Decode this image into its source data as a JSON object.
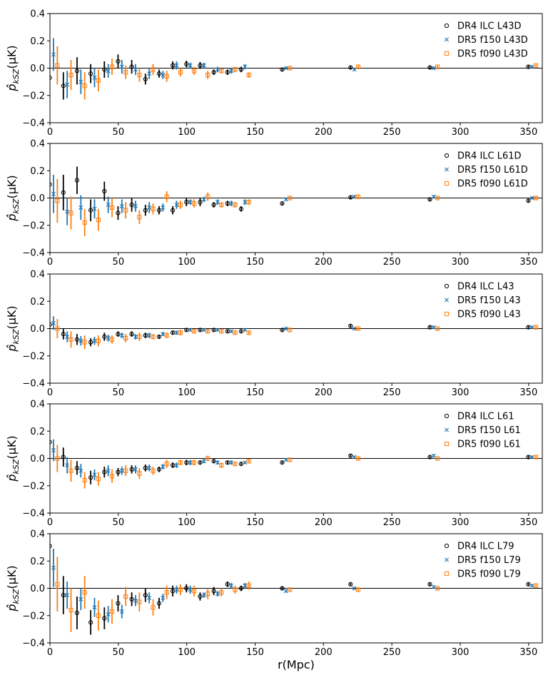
{
  "figure": {
    "ylabel": "p̂_kSZ(μK)",
    "xlabel": "r(Mpc)"
  },
  "colors": {
    "DR4 ILC": "#000000",
    "DR5 f150": "#1f77b4",
    "DR5 f090": "#ff7f0e",
    "zeroline": "#000000"
  },
  "chart_data": [
    {
      "type": "scatter",
      "title": "",
      "xlabel": "",
      "ylabel": "p̂_kSZ(μK)",
      "xlim": [
        0,
        360
      ],
      "ylim": [
        -0.4,
        0.4
      ],
      "xticks": [
        0,
        50,
        100,
        150,
        200,
        250,
        300,
        350
      ],
      "yticks": [
        -0.4,
        -0.2,
        0.0,
        0.2,
        0.4
      ],
      "legend_position": "top-right",
      "x": [
        1,
        11,
        21,
        31,
        41,
        51,
        61,
        71,
        81,
        91,
        101,
        111,
        121,
        131,
        141,
        171,
        221,
        279,
        351
      ],
      "series": [
        {
          "name": "DR4 ILC L43D",
          "marker": "circle",
          "values": [
            -0.07,
            -0.13,
            -0.02,
            -0.04,
            -0.01,
            0.05,
            0.01,
            -0.08,
            -0.04,
            0.02,
            0.03,
            0.02,
            -0.03,
            -0.03,
            -0.01,
            -0.01,
            0.005,
            0.005,
            0.01
          ],
          "errors": [
            0.14,
            0.1,
            0.1,
            0.07,
            0.06,
            0.05,
            0.05,
            0.04,
            0.03,
            0.03,
            0.025,
            0.025,
            0.02,
            0.02,
            0.02,
            0.01,
            0.01,
            0.01,
            0.01
          ]
        },
        {
          "name": "DR5 f150 L43D",
          "marker": "x",
          "values": [
            0.1,
            -0.12,
            -0.1,
            -0.07,
            -0.02,
            0.01,
            -0.01,
            -0.04,
            -0.05,
            0.02,
            0.02,
            0.02,
            -0.01,
            -0.02,
            0.01,
            0.0,
            -0.01,
            0.0,
            0.01
          ],
          "errors": [
            0.12,
            0.1,
            0.09,
            0.07,
            0.05,
            0.05,
            0.04,
            0.04,
            0.03,
            0.03,
            0.02,
            0.02,
            0.02,
            0.02,
            0.02,
            0.01,
            0.01,
            0.01,
            0.01
          ]
        },
        {
          "name": "DR5 f090 L43D",
          "marker": "square",
          "values": [
            0.02,
            -0.05,
            -0.13,
            -0.09,
            0.01,
            -0.03,
            -0.05,
            -0.01,
            -0.06,
            -0.03,
            -0.02,
            -0.05,
            -0.02,
            -0.01,
            -0.05,
            0.0,
            0.01,
            0.01,
            0.02
          ],
          "errors": [
            0.14,
            0.11,
            0.1,
            0.08,
            0.06,
            0.05,
            0.05,
            0.04,
            0.04,
            0.03,
            0.03,
            0.03,
            0.02,
            0.02,
            0.02,
            0.01,
            0.01,
            0.01,
            0.01
          ]
        }
      ]
    },
    {
      "type": "scatter",
      "title": "",
      "xlabel": "",
      "ylabel": "p̂_kSZ(μK)",
      "xlim": [
        0,
        360
      ],
      "ylim": [
        -0.4,
        0.4
      ],
      "xticks": [
        0,
        50,
        100,
        150,
        200,
        250,
        300,
        350
      ],
      "yticks": [
        -0.4,
        -0.2,
        0.0,
        0.2,
        0.4
      ],
      "legend_position": "top-right",
      "x": [
        1,
        11,
        21,
        31,
        41,
        51,
        61,
        71,
        81,
        91,
        101,
        111,
        121,
        131,
        141,
        171,
        221,
        279,
        351
      ],
      "series": [
        {
          "name": "DR4 ILC L61D",
          "marker": "circle",
          "values": [
            0.1,
            0.04,
            0.13,
            -0.09,
            0.05,
            -0.11,
            -0.05,
            -0.09,
            -0.09,
            -0.09,
            -0.03,
            -0.03,
            -0.05,
            -0.04,
            -0.08,
            -0.04,
            0.005,
            -0.01,
            -0.02
          ],
          "errors": [
            0.2,
            0.13,
            0.1,
            0.08,
            0.07,
            0.05,
            0.05,
            0.04,
            0.03,
            0.03,
            0.03,
            0.03,
            0.02,
            0.02,
            0.02,
            0.01,
            0.01,
            0.01,
            0.01
          ]
        },
        {
          "name": "DR5 f150 L61D",
          "marker": "x",
          "values": [
            0.03,
            -0.1,
            -0.07,
            -0.08,
            -0.05,
            -0.06,
            -0.06,
            -0.07,
            -0.07,
            -0.05,
            -0.03,
            -0.01,
            -0.03,
            -0.04,
            -0.03,
            -0.01,
            0.01,
            0.01,
            0.0
          ],
          "errors": [
            0.14,
            0.1,
            0.09,
            0.07,
            0.06,
            0.05,
            0.04,
            0.04,
            0.03,
            0.03,
            0.02,
            0.02,
            0.02,
            0.02,
            0.02,
            0.01,
            0.01,
            0.01,
            0.01
          ]
        },
        {
          "name": "DR5 f090 L61D",
          "marker": "square",
          "values": [
            -0.02,
            -0.11,
            -0.18,
            -0.16,
            -0.07,
            -0.09,
            -0.14,
            -0.08,
            0.01,
            -0.05,
            -0.04,
            0.01,
            -0.05,
            -0.05,
            -0.03,
            0.0,
            0.01,
            0.0,
            0.0
          ],
          "errors": [
            0.16,
            0.12,
            0.1,
            0.08,
            0.07,
            0.06,
            0.05,
            0.04,
            0.04,
            0.03,
            0.03,
            0.03,
            0.02,
            0.02,
            0.02,
            0.01,
            0.01,
            0.01,
            0.01
          ]
        }
      ]
    },
    {
      "type": "scatter",
      "title": "",
      "xlabel": "",
      "ylabel": "p̂_kSZ(μK)",
      "xlim": [
        0,
        360
      ],
      "ylim": [
        -0.4,
        0.4
      ],
      "xticks": [
        0,
        50,
        100,
        150,
        200,
        250,
        300,
        350
      ],
      "yticks": [
        -0.4,
        -0.2,
        0.0,
        0.2,
        0.4
      ],
      "legend_position": "top-right",
      "x": [
        1,
        11,
        21,
        31,
        41,
        51,
        61,
        71,
        81,
        91,
        101,
        111,
        121,
        131,
        141,
        171,
        221,
        279,
        351
      ],
      "series": [
        {
          "name": "DR4 ILC L43",
          "marker": "circle",
          "values": [
            0.03,
            -0.04,
            -0.08,
            -0.1,
            -0.06,
            -0.04,
            -0.04,
            -0.05,
            -0.06,
            -0.03,
            -0.01,
            -0.01,
            -0.01,
            -0.02,
            -0.02,
            -0.01,
            0.02,
            0.01,
            0.01
          ],
          "errors": [
            0.06,
            0.04,
            0.04,
            0.03,
            0.03,
            0.02,
            0.02,
            0.02,
            0.015,
            0.015,
            0.01,
            0.01,
            0.01,
            0.01,
            0.01,
            0.01,
            0.01,
            0.01,
            0.01
          ]
        },
        {
          "name": "DR5 f150 L43",
          "marker": "x",
          "values": [
            0.04,
            -0.06,
            -0.09,
            -0.09,
            -0.07,
            -0.05,
            -0.06,
            -0.05,
            -0.04,
            -0.03,
            -0.01,
            -0.01,
            -0.01,
            -0.02,
            -0.01,
            0.0,
            0.0,
            0.01,
            0.01
          ],
          "errors": [
            0.05,
            0.04,
            0.035,
            0.03,
            0.025,
            0.02,
            0.02,
            0.02,
            0.015,
            0.015,
            0.01,
            0.01,
            0.01,
            0.01,
            0.01,
            0.01,
            0.01,
            0.01,
            0.01
          ]
        },
        {
          "name": "DR5 f090 L43",
          "marker": "square",
          "values": [
            0.0,
            -0.08,
            -0.1,
            -0.09,
            -0.08,
            -0.07,
            -0.06,
            -0.06,
            -0.05,
            -0.03,
            -0.02,
            -0.02,
            -0.02,
            -0.03,
            -0.03,
            -0.01,
            0.0,
            0.0,
            0.01
          ],
          "errors": [
            0.07,
            0.06,
            0.05,
            0.04,
            0.03,
            0.03,
            0.03,
            0.02,
            0.02,
            0.02,
            0.015,
            0.015,
            0.015,
            0.015,
            0.015,
            0.01,
            0.01,
            0.01,
            0.01
          ]
        }
      ]
    },
    {
      "type": "scatter",
      "title": "",
      "xlabel": "",
      "ylabel": "p̂_kSZ(μK)",
      "xlim": [
        0,
        360
      ],
      "ylim": [
        -0.4,
        0.4
      ],
      "xticks": [
        0,
        50,
        100,
        150,
        200,
        250,
        300,
        350
      ],
      "yticks": [
        -0.4,
        -0.2,
        0.0,
        0.2,
        0.4
      ],
      "legend_position": "top-right",
      "x": [
        1,
        11,
        21,
        31,
        41,
        51,
        61,
        71,
        81,
        91,
        101,
        111,
        121,
        131,
        141,
        171,
        221,
        279,
        351
      ],
      "series": [
        {
          "name": "DR4 ILC L61",
          "marker": "circle",
          "values": [
            0.12,
            0.01,
            -0.07,
            -0.14,
            -0.1,
            -0.1,
            -0.08,
            -0.07,
            -0.08,
            -0.05,
            -0.03,
            -0.03,
            -0.02,
            -0.03,
            -0.04,
            -0.03,
            0.02,
            0.01,
            0.01
          ],
          "errors": [
            0.1,
            0.07,
            0.05,
            0.05,
            0.04,
            0.03,
            0.03,
            0.025,
            0.02,
            0.02,
            0.02,
            0.015,
            0.015,
            0.015,
            0.01,
            0.01,
            0.01,
            0.01,
            0.01
          ]
        },
        {
          "name": "DR5 f150 L61",
          "marker": "x",
          "values": [
            0.06,
            -0.05,
            -0.09,
            -0.12,
            -0.09,
            -0.09,
            -0.08,
            -0.07,
            -0.06,
            -0.05,
            -0.03,
            -0.02,
            -0.03,
            -0.03,
            -0.03,
            -0.01,
            0.01,
            0.02,
            0.01
          ],
          "errors": [
            0.08,
            0.06,
            0.05,
            0.04,
            0.04,
            0.03,
            0.03,
            0.025,
            0.02,
            0.02,
            0.02,
            0.015,
            0.015,
            0.015,
            0.01,
            0.01,
            0.01,
            0.01,
            0.01
          ]
        },
        {
          "name": "DR5 f090 L61",
          "marker": "square",
          "values": [
            0.0,
            -0.09,
            -0.16,
            -0.15,
            -0.13,
            -0.09,
            -0.11,
            -0.09,
            -0.04,
            -0.03,
            -0.03,
            0.0,
            -0.05,
            -0.04,
            -0.02,
            -0.01,
            0.0,
            0.0,
            0.01
          ],
          "errors": [
            0.1,
            0.08,
            0.06,
            0.05,
            0.05,
            0.04,
            0.04,
            0.03,
            0.03,
            0.02,
            0.02,
            0.02,
            0.02,
            0.015,
            0.015,
            0.01,
            0.01,
            0.01,
            0.01
          ]
        }
      ]
    },
    {
      "type": "scatter",
      "title": "",
      "xlabel": "r(Mpc)",
      "ylabel": "p̂_kSZ(μK)",
      "xlim": [
        0,
        360
      ],
      "ylim": [
        -0.4,
        0.4
      ],
      "xticks": [
        0,
        50,
        100,
        150,
        200,
        250,
        300,
        350
      ],
      "yticks": [
        -0.4,
        -0.2,
        0.0,
        0.2,
        0.4
      ],
      "legend_position": "top-right",
      "x": [
        1,
        11,
        21,
        31,
        41,
        51,
        61,
        71,
        81,
        91,
        101,
        111,
        121,
        131,
        141,
        171,
        221,
        279,
        351
      ],
      "series": [
        {
          "name": "DR4 ILC L79",
          "marker": "circle",
          "values": [
            0.31,
            -0.05,
            -0.18,
            -0.25,
            -0.22,
            -0.11,
            -0.08,
            -0.05,
            -0.11,
            -0.02,
            0.0,
            -0.06,
            -0.02,
            0.03,
            0.0,
            0.0,
            0.03,
            0.03,
            0.03
          ],
          "errors": [
            0.18,
            0.14,
            0.12,
            0.09,
            0.08,
            0.06,
            0.05,
            0.05,
            0.04,
            0.04,
            0.03,
            0.03,
            0.03,
            0.02,
            0.02,
            0.01,
            0.01,
            0.01,
            0.01
          ]
        },
        {
          "name": "DR5 f150 L79",
          "marker": "x",
          "values": [
            0.15,
            -0.05,
            -0.08,
            -0.14,
            -0.19,
            -0.17,
            -0.09,
            -0.07,
            -0.07,
            -0.01,
            -0.01,
            -0.05,
            -0.04,
            0.02,
            0.02,
            -0.02,
            0.0,
            0.01,
            0.02
          ],
          "errors": [
            0.14,
            0.1,
            0.08,
            0.07,
            0.06,
            0.05,
            0.04,
            0.04,
            0.03,
            0.03,
            0.03,
            0.02,
            0.02,
            0.02,
            0.02,
            0.01,
            0.01,
            0.01,
            0.01
          ]
        },
        {
          "name": "DR5 f090 L79",
          "marker": "square",
          "values": [
            0.03,
            -0.16,
            -0.03,
            -0.2,
            -0.17,
            -0.06,
            -0.1,
            -0.14,
            -0.03,
            -0.01,
            -0.02,
            -0.04,
            -0.03,
            -0.01,
            0.02,
            -0.01,
            -0.01,
            0.0,
            0.02
          ],
          "errors": [
            0.2,
            0.16,
            0.12,
            0.11,
            0.09,
            0.07,
            0.07,
            0.06,
            0.05,
            0.04,
            0.04,
            0.04,
            0.03,
            0.03,
            0.03,
            0.015,
            0.015,
            0.01,
            0.01
          ]
        }
      ]
    }
  ]
}
